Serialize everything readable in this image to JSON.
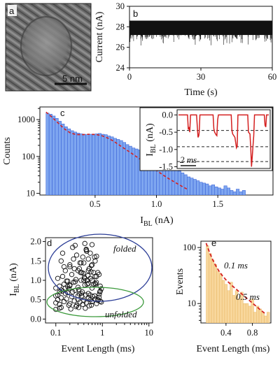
{
  "colors": {
    "hist_fill": "#7ea6f0",
    "hist_edge": "#3d66d8",
    "fit_red": "#d42020",
    "trace_black": "#111111",
    "inset_red": "#d42020",
    "dwell_fill": "#f8d79c",
    "dwell_edge": "#e8b765",
    "circle_blue": "#2a3c96",
    "circle_green": "#3c9a3c"
  },
  "chart_data": [
    {
      "panel": "a",
      "type": "image",
      "scale_bar": "5 nm"
    },
    {
      "panel": "b",
      "type": "line",
      "xlabel": "Time (s)",
      "ylabel": "Current (nA)",
      "xlim": [
        0,
        60
      ],
      "ylim": [
        24,
        30
      ],
      "xticks": [
        "0",
        "30",
        "60"
      ],
      "yticks": [
        "24",
        "26",
        "28",
        "30"
      ],
      "baseline_nA": 28.0,
      "noise_band_nA": [
        27.2,
        28.6
      ],
      "deepest_spike_nA": 26.1
    },
    {
      "panel": "c",
      "type": "bar",
      "yscale": "log",
      "xlabel_main": "I",
      "xlabel_sub": "BL",
      "xlabel_unit": " (nA)",
      "ylabel": "Counts",
      "xlim": [
        0.05,
        1.95
      ],
      "ylim": [
        9,
        2200
      ],
      "xticks": [
        "0.5",
        "1.0",
        "1.5"
      ],
      "yticks": [
        "10",
        "100",
        "1000"
      ],
      "bin_width": 0.025,
      "x_start": 0.1,
      "values": [
        1500,
        1400,
        1250,
        1080,
        900,
        760,
        640,
        560,
        500,
        460,
        430,
        410,
        400,
        390,
        400,
        385,
        410,
        420,
        400,
        390,
        360,
        340,
        310,
        290,
        270,
        240,
        210,
        190,
        170,
        160,
        150,
        130,
        118,
        110,
        98,
        92,
        80,
        72,
        65,
        58,
        52,
        48,
        42,
        40,
        36,
        32,
        28,
        26,
        24,
        22,
        20,
        19,
        18,
        16,
        17,
        15,
        14,
        13,
        16,
        14,
        12,
        11,
        13,
        11,
        12
      ],
      "fit_x": [
        0.1,
        0.15,
        0.2,
        0.25,
        0.3,
        0.35,
        0.4,
        0.45,
        0.5,
        0.55,
        0.6,
        0.65,
        0.7,
        0.75,
        0.8,
        0.85,
        0.9,
        0.95,
        1.0,
        1.05,
        1.1,
        1.15,
        1.2,
        1.25
      ],
      "fit_y": [
        1600,
        1150,
        800,
        560,
        430,
        390,
        390,
        400,
        395,
        370,
        320,
        260,
        200,
        155,
        120,
        92,
        72,
        55,
        42,
        32,
        25,
        20,
        16,
        13
      ],
      "inset": {
        "type": "line",
        "ylabel_main": "I",
        "ylabel_sub": "BL",
        "ylabel_unit": " (nA)",
        "ylim": [
          -1.55,
          0.15
        ],
        "yticks": [
          "0.0",
          "-0.5",
          "-1.0",
          "-1.5"
        ],
        "time_scalebar": "2 ms",
        "dashed_levels": [
          -0.45,
          -0.92,
          -1.35
        ],
        "trace_t": [
          0,
          1.2,
          1.3,
          1.4,
          1.5,
          1.6,
          2.4,
          2.5,
          2.6,
          2.7,
          2.75,
          2.85,
          2.95,
          4.6,
          4.7,
          4.8,
          5.0,
          5.1,
          5.2,
          5.3,
          7.0,
          7.1,
          7.2,
          7.5,
          7.7,
          7.8,
          7.9,
          9.2,
          9.3,
          9.5,
          9.6,
          9.7,
          9.8,
          9.9,
          10.0,
          10.1,
          11.4,
          11.5,
          11.6,
          11.7,
          12.0
        ],
        "trace_i": [
          0,
          0,
          -0.42,
          -0.35,
          -0.5,
          0,
          0,
          -0.35,
          -0.65,
          -0.6,
          -0.5,
          0,
          0,
          0,
          -0.4,
          -0.5,
          -0.58,
          -0.6,
          -0.15,
          0,
          0,
          -0.45,
          -0.55,
          -0.65,
          -0.95,
          -0.9,
          0,
          0,
          -0.5,
          -0.55,
          -0.95,
          -1.5,
          -1.2,
          -0.9,
          -0.6,
          0,
          0,
          -0.3,
          -0.35,
          0,
          0
        ]
      }
    },
    {
      "panel": "d",
      "type": "scatter",
      "xscale": "log",
      "xlabel": "Event Length (ms)",
      "ylabel_main": "I",
      "ylabel_sub": "BL",
      "ylabel_unit": " (nA)",
      "xlim": [
        0.06,
        12
      ],
      "ylim": [
        -0.1,
        2.1
      ],
      "xticks": [
        "0.1",
        "1",
        "10"
      ],
      "yticks": [
        "0.0",
        "0.5",
        "1.0",
        "1.5",
        "2.0"
      ],
      "annotations": [
        "folded",
        "unfolded"
      ],
      "points_x": [
        0.1,
        0.11,
        0.12,
        0.13,
        0.15,
        0.17,
        0.2,
        0.22,
        0.25,
        0.28,
        0.3,
        0.33,
        0.36,
        0.4,
        0.45,
        0.5,
        0.55,
        0.6,
        0.7,
        0.8,
        0.9,
        0.11,
        0.13,
        0.16,
        0.19,
        0.23,
        0.27,
        0.32,
        0.38,
        0.44,
        0.52,
        0.62,
        0.75,
        0.85,
        0.1,
        0.12,
        0.14,
        0.18,
        0.21,
        0.26,
        0.31,
        0.37,
        0.43,
        0.5,
        0.58,
        0.68,
        0.8,
        0.95,
        0.1,
        0.12,
        0.15,
        0.19,
        0.24,
        0.3,
        0.35,
        0.42,
        0.5,
        0.6,
        0.72,
        0.88,
        0.11,
        0.14,
        0.17,
        0.22,
        0.27,
        0.34,
        0.41,
        0.49,
        0.6,
        0.74,
        0.9,
        0.1,
        0.13,
        0.16,
        0.2,
        0.25,
        0.31,
        0.39,
        0.47,
        0.57,
        0.7,
        0.86,
        0.12,
        0.15,
        0.2,
        0.26,
        0.33,
        0.42,
        0.52,
        0.65,
        0.8,
        0.95,
        0.13,
        0.18,
        0.24,
        0.3,
        0.38,
        0.47,
        0.58,
        0.7,
        0.85,
        0.14,
        0.2,
        0.28,
        0.36,
        0.46,
        0.6,
        0.75,
        0.16,
        0.23,
        0.32,
        0.42,
        0.55,
        0.68,
        0.18,
        0.26,
        0.35,
        0.45,
        0.5,
        0.7,
        0.9,
        0.2,
        0.3,
        0.4,
        0.55,
        0.65,
        0.4,
        0.5,
        0.6,
        0.45,
        0.55,
        0.35,
        0.75
      ],
      "points_y": [
        0.42,
        0.5,
        0.38,
        0.55,
        0.45,
        0.52,
        0.4,
        0.58,
        0.47,
        0.35,
        0.5,
        0.44,
        0.6,
        0.48,
        0.42,
        0.55,
        0.5,
        0.45,
        0.52,
        0.48,
        0.46,
        0.62,
        0.3,
        0.66,
        0.36,
        0.7,
        0.32,
        0.65,
        0.38,
        0.62,
        0.34,
        0.58,
        0.4,
        0.56,
        0.25,
        0.28,
        0.72,
        0.68,
        0.26,
        0.74,
        0.3,
        0.7,
        0.28,
        0.66,
        0.36,
        0.6,
        0.5,
        0.44,
        0.8,
        0.85,
        0.9,
        0.78,
        0.95,
        0.82,
        1.0,
        0.88,
        0.92,
        0.8,
        0.9,
        0.7,
        1.05,
        1.1,
        0.98,
        1.15,
        1.02,
        1.2,
        1.08,
        1.12,
        1.0,
        0.95,
        0.85,
        0.6,
        0.75,
        1.25,
        0.86,
        1.3,
        0.76,
        1.18,
        0.9,
        1.22,
        1.1,
        0.64,
        0.7,
        1.35,
        1.4,
        0.96,
        1.45,
        1.05,
        1.3,
        0.9,
        1.2,
        0.78,
        1.5,
        0.84,
        1.55,
        1.25,
        1.6,
        1.0,
        1.38,
        0.92,
        1.15,
        1.7,
        0.88,
        1.65,
        1.2,
        1.75,
        1.4,
        1.1,
        0.8,
        1.85,
        1.3,
        1.95,
        1.05,
        1.6,
        0.98,
        1.9,
        1.45,
        1.8,
        1.25,
        1.5,
        0.72,
        1.35,
        0.6,
        1.0,
        1.7,
        1.2,
        1.45,
        1.55,
        1.92,
        1.78,
        0.62,
        0.66,
        1.62,
        1.36
      ]
    },
    {
      "panel": "e",
      "type": "bar",
      "yscale": "log",
      "xlabel": "Event Length (ms)",
      "ylabel": "Events",
      "xlim": [
        0.02,
        1.08
      ],
      "ylim": [
        4.5,
        130
      ],
      "xticks": [
        "0.4",
        "0.8"
      ],
      "yticks": [
        "10",
        "100"
      ],
      "bin_width": 0.04,
      "x_start": 0.1,
      "values": [
        108,
        78,
        60,
        50,
        38,
        34,
        26,
        22,
        17,
        24,
        14,
        17,
        12,
        16,
        10,
        10,
        9,
        12,
        7,
        9,
        8,
        7,
        6,
        7
      ],
      "fit_x": [
        0.1,
        0.15,
        0.2,
        0.25,
        0.3,
        0.35,
        0.4,
        0.5,
        0.6,
        0.7,
        0.8,
        0.9,
        1.0
      ],
      "fit_y": [
        120,
        82,
        60,
        46,
        37,
        31,
        26.5,
        20.5,
        16.2,
        12.8,
        10.2,
        8.1,
        6.5
      ],
      "annotations": [
        "0.1 ms",
        "0.5 ms"
      ]
    }
  ]
}
